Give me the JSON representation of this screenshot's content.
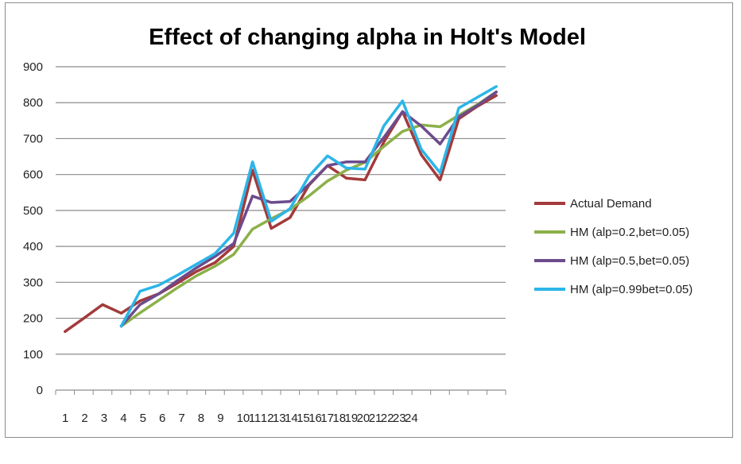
{
  "chart_data": {
    "type": "line",
    "title": "Effect of changing alpha in Holt's Model",
    "xlabel": "",
    "ylabel": "",
    "ylim": [
      0,
      900
    ],
    "yticks": [
      0,
      100,
      200,
      300,
      400,
      500,
      600,
      700,
      800,
      900
    ],
    "categories": [
      "1",
      "2",
      "3",
      "4",
      "5",
      "6",
      "7",
      "8",
      "9",
      "10",
      "11",
      "12",
      "13",
      "14",
      "15",
      "16",
      "17",
      "18",
      "19",
      "20",
      "21",
      "22",
      "23",
      "24"
    ],
    "x_tick_labels": [
      "1",
      "2",
      "3",
      "4",
      "5",
      "6",
      "7",
      "8",
      "9",
      "10",
      "11",
      "12",
      "13",
      "14",
      "15",
      "16",
      "17",
      "18",
      "19",
      "20",
      "21",
      "22",
      "23",
      "24"
    ],
    "grid": "horizontal",
    "legend_position": "right",
    "series": [
      {
        "name": "Actual Demand",
        "color": "#a33a3a",
        "values": [
          163,
          200,
          238,
          214,
          248,
          268,
          298,
          330,
          355,
          400,
          612,
          450,
          480,
          570,
          625,
          590,
          585,
          690,
          775,
          655,
          585,
          755,
          790,
          820
        ]
      },
      {
        "name": "HM (alp=0.2,bet=0.05)",
        "color": "#8cb04a",
        "values": [
          null,
          null,
          null,
          178,
          215,
          250,
          285,
          318,
          345,
          378,
          448,
          477,
          503,
          540,
          582,
          612,
          634,
          678,
          720,
          738,
          733,
          765,
          795,
          830
        ]
      },
      {
        "name": "HM (alp=0.5,bet=0.05)",
        "color": "#6c4b8c",
        "values": [
          null,
          null,
          null,
          178,
          238,
          268,
          305,
          340,
          372,
          408,
          540,
          522,
          525,
          572,
          625,
          635,
          635,
          703,
          775,
          735,
          685,
          760,
          792,
          830
        ]
      },
      {
        "name": "HM (alp=0.99bet=0.05)",
        "color": "#2bb5e8",
        "values": [
          null,
          null,
          null,
          178,
          275,
          292,
          320,
          350,
          380,
          437,
          635,
          470,
          505,
          595,
          652,
          618,
          615,
          735,
          805,
          670,
          605,
          785,
          815,
          845
        ]
      }
    ]
  }
}
